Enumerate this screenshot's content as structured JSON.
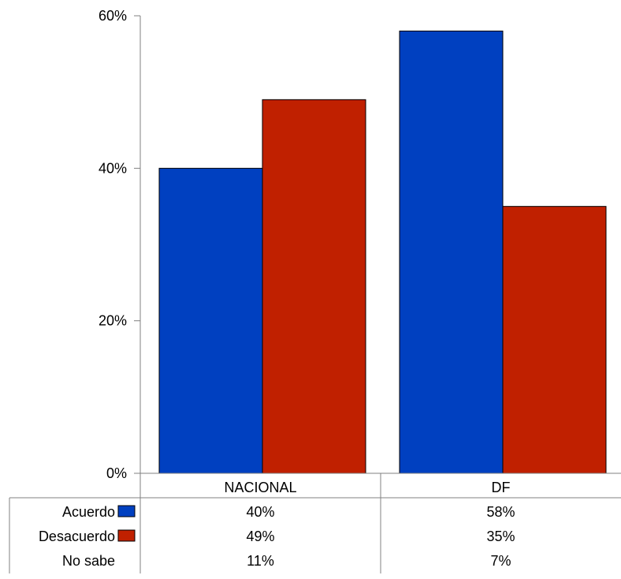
{
  "chart_data": {
    "type": "bar",
    "categories": [
      "NACIONAL",
      "DF"
    ],
    "series": [
      {
        "name": "Acuerdo",
        "color": "#0040C0",
        "values": [
          40,
          58
        ],
        "labels": [
          "40%",
          "58%"
        ]
      },
      {
        "name": "Desacuerdo",
        "color": "#C02000",
        "values": [
          49,
          35
        ],
        "labels": [
          "49%",
          "35%"
        ]
      },
      {
        "name": "No sabe",
        "values": [
          11,
          7
        ],
        "labels": [
          "11%",
          "7%"
        ],
        "shown_as_bar": false
      }
    ],
    "ylim": [
      0,
      60
    ],
    "yticks": [
      {
        "value": 0,
        "label": "0%"
      },
      {
        "value": 20,
        "label": "20%"
      },
      {
        "value": 40,
        "label": "40%"
      },
      {
        "value": 60,
        "label": "60%"
      }
    ],
    "grid": false,
    "legend": "data-table-below"
  }
}
